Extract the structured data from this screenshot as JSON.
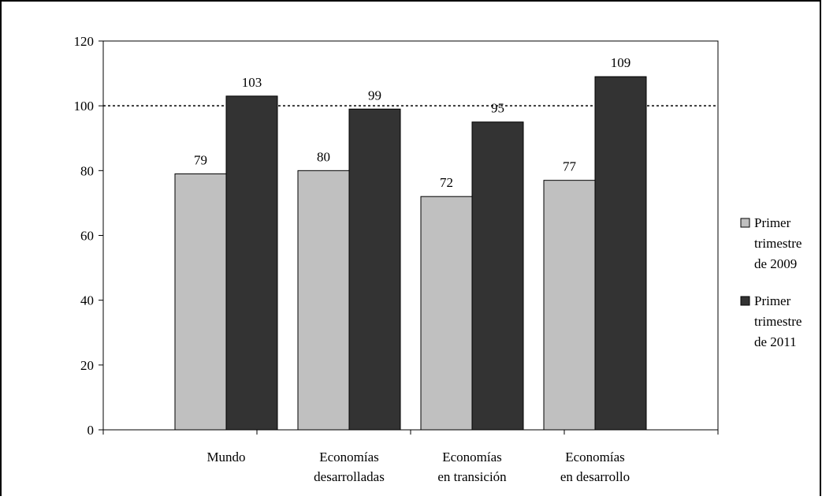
{
  "colors": {
    "series_2009": "#c0c0c0",
    "series_2011": "#333333",
    "axis": "#000000",
    "background": "#ffffff"
  },
  "chart_data": {
    "type": "bar",
    "title": "",
    "xlabel": "",
    "ylabel": "",
    "ylim": [
      0,
      120
    ],
    "yticks": [
      "0",
      "20",
      "40",
      "60",
      "80",
      "100",
      "120"
    ],
    "reference_line": {
      "y": 100,
      "style": "dotted"
    },
    "grid": false,
    "legend_position": "right",
    "categories": [
      [
        "Mundo"
      ],
      [
        "Economías",
        "desarrolladas"
      ],
      [
        "Economías",
        "en transición"
      ],
      [
        "Economías",
        "en desarrollo"
      ]
    ],
    "series": [
      {
        "name": [
          "Primer",
          "trimestre",
          "de 2009"
        ],
        "values": [
          79,
          80,
          72,
          77
        ],
        "labels": [
          "79",
          "80",
          "72",
          "77"
        ]
      },
      {
        "name": [
          "Primer",
          "trimestre",
          "de 2011"
        ],
        "values": [
          103,
          99,
          95,
          109
        ],
        "labels": [
          "103",
          "99",
          "95",
          "109"
        ]
      }
    ]
  }
}
